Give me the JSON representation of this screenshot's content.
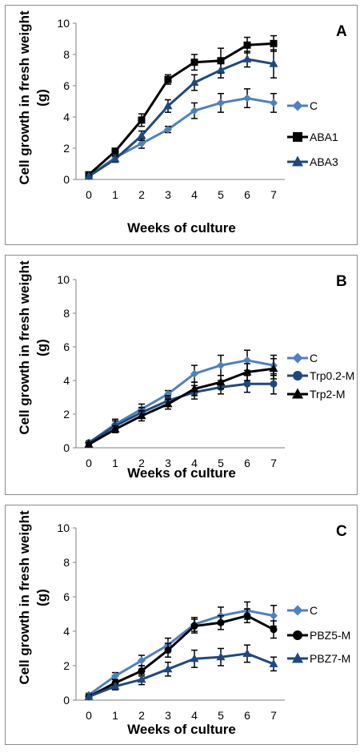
{
  "chart_data": [
    {
      "type": "line",
      "panel_label": "A",
      "ylabel": "Cell growth in fresh weight (g)",
      "ylabel_lines": [
        "Cell growth in fresh weight",
        "(g)"
      ],
      "xlabel": "Weeks of culture",
      "x": [
        0,
        1,
        2,
        3,
        4,
        5,
        6,
        7
      ],
      "ylim": [
        0,
        10
      ],
      "yticks": [
        0,
        2,
        4,
        6,
        8,
        10
      ],
      "grid": false,
      "legend_position": "right",
      "series": [
        {
          "name": "C",
          "color": "#4f81bd",
          "marker": "diamond",
          "values": [
            0.2,
            1.4,
            2.3,
            3.2,
            4.4,
            4.9,
            5.2,
            4.9
          ],
          "errors": [
            0.1,
            0.2,
            0.3,
            0.2,
            0.5,
            0.6,
            0.6,
            0.6
          ]
        },
        {
          "name": "ABA1",
          "color": "#000000",
          "marker": "square",
          "values": [
            0.3,
            1.8,
            3.8,
            6.4,
            7.5,
            7.6,
            8.6,
            8.7
          ],
          "errors": [
            0.1,
            0.2,
            0.4,
            0.3,
            0.5,
            0.8,
            0.5,
            0.5
          ]
        },
        {
          "name": "ABA3",
          "color": "#1f497d",
          "marker": "triangle",
          "values": [
            0.2,
            1.3,
            2.8,
            4.7,
            6.2,
            7.0,
            7.7,
            7.4
          ],
          "errors": [
            0.1,
            0.2,
            0.3,
            0.4,
            0.5,
            0.5,
            0.5,
            0.9
          ]
        }
      ]
    },
    {
      "type": "line",
      "panel_label": "B",
      "ylabel": "Cell growth in fresh weight (g)",
      "ylabel_lines": [
        "Cell growth in fresh weight",
        "(g)"
      ],
      "xlabel": "Weeks of culture",
      "x": [
        0,
        1,
        2,
        3,
        4,
        5,
        6,
        7
      ],
      "ylim": [
        0,
        10
      ],
      "yticks": [
        0,
        2,
        4,
        6,
        8,
        10
      ],
      "grid": false,
      "legend_position": "right",
      "series": [
        {
          "name": "C",
          "color": "#4f81bd",
          "marker": "diamond",
          "values": [
            0.3,
            1.4,
            2.3,
            3.2,
            4.4,
            4.9,
            5.2,
            4.9
          ],
          "errors": [
            0.1,
            0.3,
            0.3,
            0.2,
            0.5,
            0.6,
            0.6,
            0.6
          ]
        },
        {
          "name": "Trp0.2-M",
          "color": "#1f497d",
          "marker": "circle",
          "values": [
            0.3,
            1.3,
            2.1,
            2.8,
            3.3,
            3.6,
            3.8,
            3.8
          ],
          "errors": [
            0.1,
            0.3,
            0.3,
            0.3,
            0.4,
            0.4,
            0.5,
            0.6
          ]
        },
        {
          "name": "Trp2-M",
          "color": "#000000",
          "marker": "triangle",
          "values": [
            0.2,
            1.1,
            1.9,
            2.6,
            3.5,
            3.9,
            4.5,
            4.7
          ],
          "errors": [
            0.1,
            0.2,
            0.3,
            0.3,
            0.4,
            0.4,
            0.5,
            0.6
          ]
        }
      ]
    },
    {
      "type": "line",
      "panel_label": "C",
      "ylabel": "Cell growth in fresh weight (g)",
      "ylabel_lines": [
        "Cell growth in fresh weight",
        "(g)"
      ],
      "xlabel": "Weeks of culture",
      "x": [
        0,
        1,
        2,
        3,
        4,
        5,
        6,
        7
      ],
      "ylim": [
        0,
        10
      ],
      "yticks": [
        0,
        2,
        4,
        6,
        8,
        10
      ],
      "grid": false,
      "legend_position": "right",
      "series": [
        {
          "name": "C",
          "color": "#4f81bd",
          "marker": "diamond",
          "values": [
            0.3,
            1.4,
            2.3,
            3.2,
            4.4,
            4.9,
            5.2,
            4.9
          ],
          "errors": [
            0.1,
            0.2,
            0.3,
            0.4,
            0.4,
            0.5,
            0.5,
            0.6
          ]
        },
        {
          "name": "PBZ5-M",
          "color": "#000000",
          "marker": "circle",
          "values": [
            0.2,
            1.0,
            1.7,
            2.9,
            4.3,
            4.5,
            4.9,
            4.1
          ],
          "errors": [
            0.1,
            0.2,
            0.3,
            0.4,
            0.4,
            0.4,
            0.4,
            0.5
          ]
        },
        {
          "name": "PBZ7-M",
          "color": "#1f497d",
          "marker": "triangle",
          "values": [
            0.2,
            0.8,
            1.2,
            1.8,
            2.4,
            2.5,
            2.7,
            2.1
          ],
          "errors": [
            0.1,
            0.2,
            0.3,
            0.4,
            0.5,
            0.5,
            0.5,
            0.4
          ]
        }
      ]
    }
  ]
}
